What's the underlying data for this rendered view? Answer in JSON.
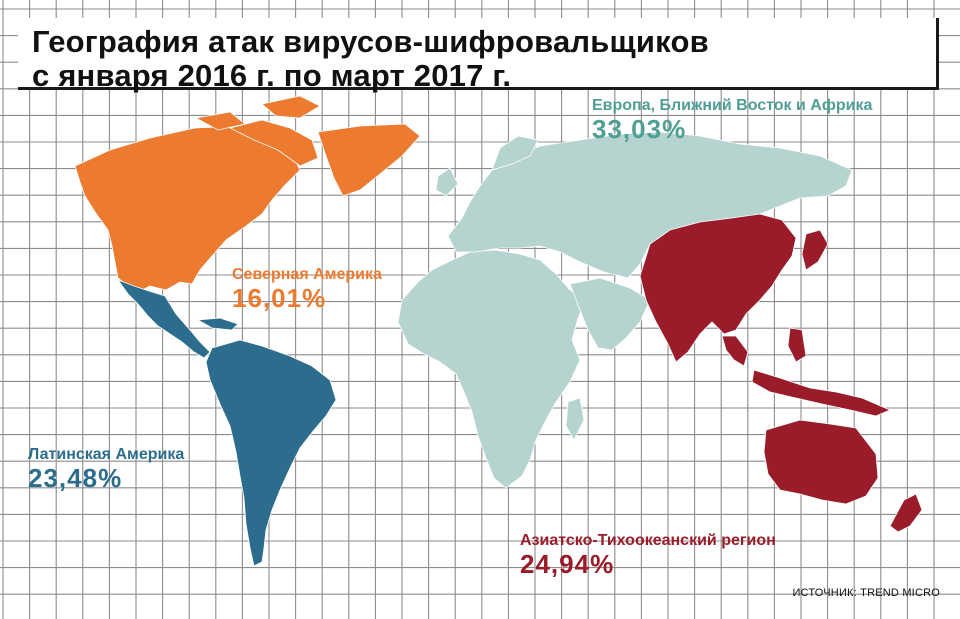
{
  "title": {
    "line1": "География атак вирусов-шифровальщиков",
    "line2": "с января 2016 г. по март 2017 г."
  },
  "regions": {
    "north_america": {
      "name": "Северная Америка",
      "value": "16,01%",
      "color": "#ec7a2f"
    },
    "europe_me_africa": {
      "name": "Европа, Ближний Восток и Африка",
      "value": "33,03%",
      "color": "#b5d3cf"
    },
    "latin_america": {
      "name": "Латинская Америка",
      "value": "23,48%",
      "color": "#2c6d8e"
    },
    "asia_pacific": {
      "name": "Азиатско-Тихоокеанский регион",
      "value": "24,94%",
      "color": "#9a1c2a"
    }
  },
  "source": "ИСТОЧНИК: TREND MICRO"
}
